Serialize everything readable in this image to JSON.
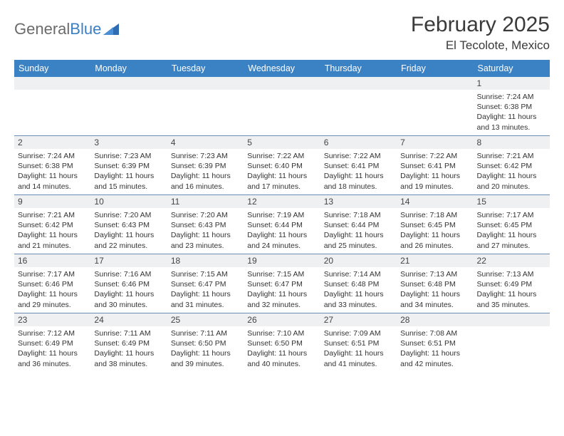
{
  "logo": {
    "text1": "General",
    "text2": "Blue"
  },
  "title": "February 2025",
  "location": "El Tecolote, Mexico",
  "dayNames": [
    "Sunday",
    "Monday",
    "Tuesday",
    "Wednesday",
    "Thursday",
    "Friday",
    "Saturday"
  ],
  "colors": {
    "headerBar": "#3b82c4",
    "weekDivider": "#6b8db5",
    "dayNumBg": "#eef0f2",
    "text": "#333333",
    "logoGray": "#6b6b6b",
    "logoBlue": "#3b7fc4"
  },
  "typography": {
    "titleSize": 30,
    "locationSize": 17,
    "dayHeaderSize": 12.5,
    "dayNumSize": 12,
    "cellSize": 10.5
  },
  "weeks": [
    {
      "nums": [
        "",
        "",
        "",
        "",
        "",
        "",
        "1"
      ],
      "cells": [
        {},
        {},
        {},
        {},
        {},
        {},
        {
          "sunrise": "7:24 AM",
          "sunset": "6:38 PM",
          "daylight": "11 hours and 13 minutes."
        }
      ]
    },
    {
      "nums": [
        "2",
        "3",
        "4",
        "5",
        "6",
        "7",
        "8"
      ],
      "cells": [
        {
          "sunrise": "7:24 AM",
          "sunset": "6:38 PM",
          "daylight": "11 hours and 14 minutes."
        },
        {
          "sunrise": "7:23 AM",
          "sunset": "6:39 PM",
          "daylight": "11 hours and 15 minutes."
        },
        {
          "sunrise": "7:23 AM",
          "sunset": "6:39 PM",
          "daylight": "11 hours and 16 minutes."
        },
        {
          "sunrise": "7:22 AM",
          "sunset": "6:40 PM",
          "daylight": "11 hours and 17 minutes."
        },
        {
          "sunrise": "7:22 AM",
          "sunset": "6:41 PM",
          "daylight": "11 hours and 18 minutes."
        },
        {
          "sunrise": "7:22 AM",
          "sunset": "6:41 PM",
          "daylight": "11 hours and 19 minutes."
        },
        {
          "sunrise": "7:21 AM",
          "sunset": "6:42 PM",
          "daylight": "11 hours and 20 minutes."
        }
      ]
    },
    {
      "nums": [
        "9",
        "10",
        "11",
        "12",
        "13",
        "14",
        "15"
      ],
      "cells": [
        {
          "sunrise": "7:21 AM",
          "sunset": "6:42 PM",
          "daylight": "11 hours and 21 minutes."
        },
        {
          "sunrise": "7:20 AM",
          "sunset": "6:43 PM",
          "daylight": "11 hours and 22 minutes."
        },
        {
          "sunrise": "7:20 AM",
          "sunset": "6:43 PM",
          "daylight": "11 hours and 23 minutes."
        },
        {
          "sunrise": "7:19 AM",
          "sunset": "6:44 PM",
          "daylight": "11 hours and 24 minutes."
        },
        {
          "sunrise": "7:18 AM",
          "sunset": "6:44 PM",
          "daylight": "11 hours and 25 minutes."
        },
        {
          "sunrise": "7:18 AM",
          "sunset": "6:45 PM",
          "daylight": "11 hours and 26 minutes."
        },
        {
          "sunrise": "7:17 AM",
          "sunset": "6:45 PM",
          "daylight": "11 hours and 27 minutes."
        }
      ]
    },
    {
      "nums": [
        "16",
        "17",
        "18",
        "19",
        "20",
        "21",
        "22"
      ],
      "cells": [
        {
          "sunrise": "7:17 AM",
          "sunset": "6:46 PM",
          "daylight": "11 hours and 29 minutes."
        },
        {
          "sunrise": "7:16 AM",
          "sunset": "6:46 PM",
          "daylight": "11 hours and 30 minutes."
        },
        {
          "sunrise": "7:15 AM",
          "sunset": "6:47 PM",
          "daylight": "11 hours and 31 minutes."
        },
        {
          "sunrise": "7:15 AM",
          "sunset": "6:47 PM",
          "daylight": "11 hours and 32 minutes."
        },
        {
          "sunrise": "7:14 AM",
          "sunset": "6:48 PM",
          "daylight": "11 hours and 33 minutes."
        },
        {
          "sunrise": "7:13 AM",
          "sunset": "6:48 PM",
          "daylight": "11 hours and 34 minutes."
        },
        {
          "sunrise": "7:13 AM",
          "sunset": "6:49 PM",
          "daylight": "11 hours and 35 minutes."
        }
      ]
    },
    {
      "nums": [
        "23",
        "24",
        "25",
        "26",
        "27",
        "28",
        ""
      ],
      "cells": [
        {
          "sunrise": "7:12 AM",
          "sunset": "6:49 PM",
          "daylight": "11 hours and 36 minutes."
        },
        {
          "sunrise": "7:11 AM",
          "sunset": "6:49 PM",
          "daylight": "11 hours and 38 minutes."
        },
        {
          "sunrise": "7:11 AM",
          "sunset": "6:50 PM",
          "daylight": "11 hours and 39 minutes."
        },
        {
          "sunrise": "7:10 AM",
          "sunset": "6:50 PM",
          "daylight": "11 hours and 40 minutes."
        },
        {
          "sunrise": "7:09 AM",
          "sunset": "6:51 PM",
          "daylight": "11 hours and 41 minutes."
        },
        {
          "sunrise": "7:08 AM",
          "sunset": "6:51 PM",
          "daylight": "11 hours and 42 minutes."
        },
        {}
      ]
    }
  ]
}
